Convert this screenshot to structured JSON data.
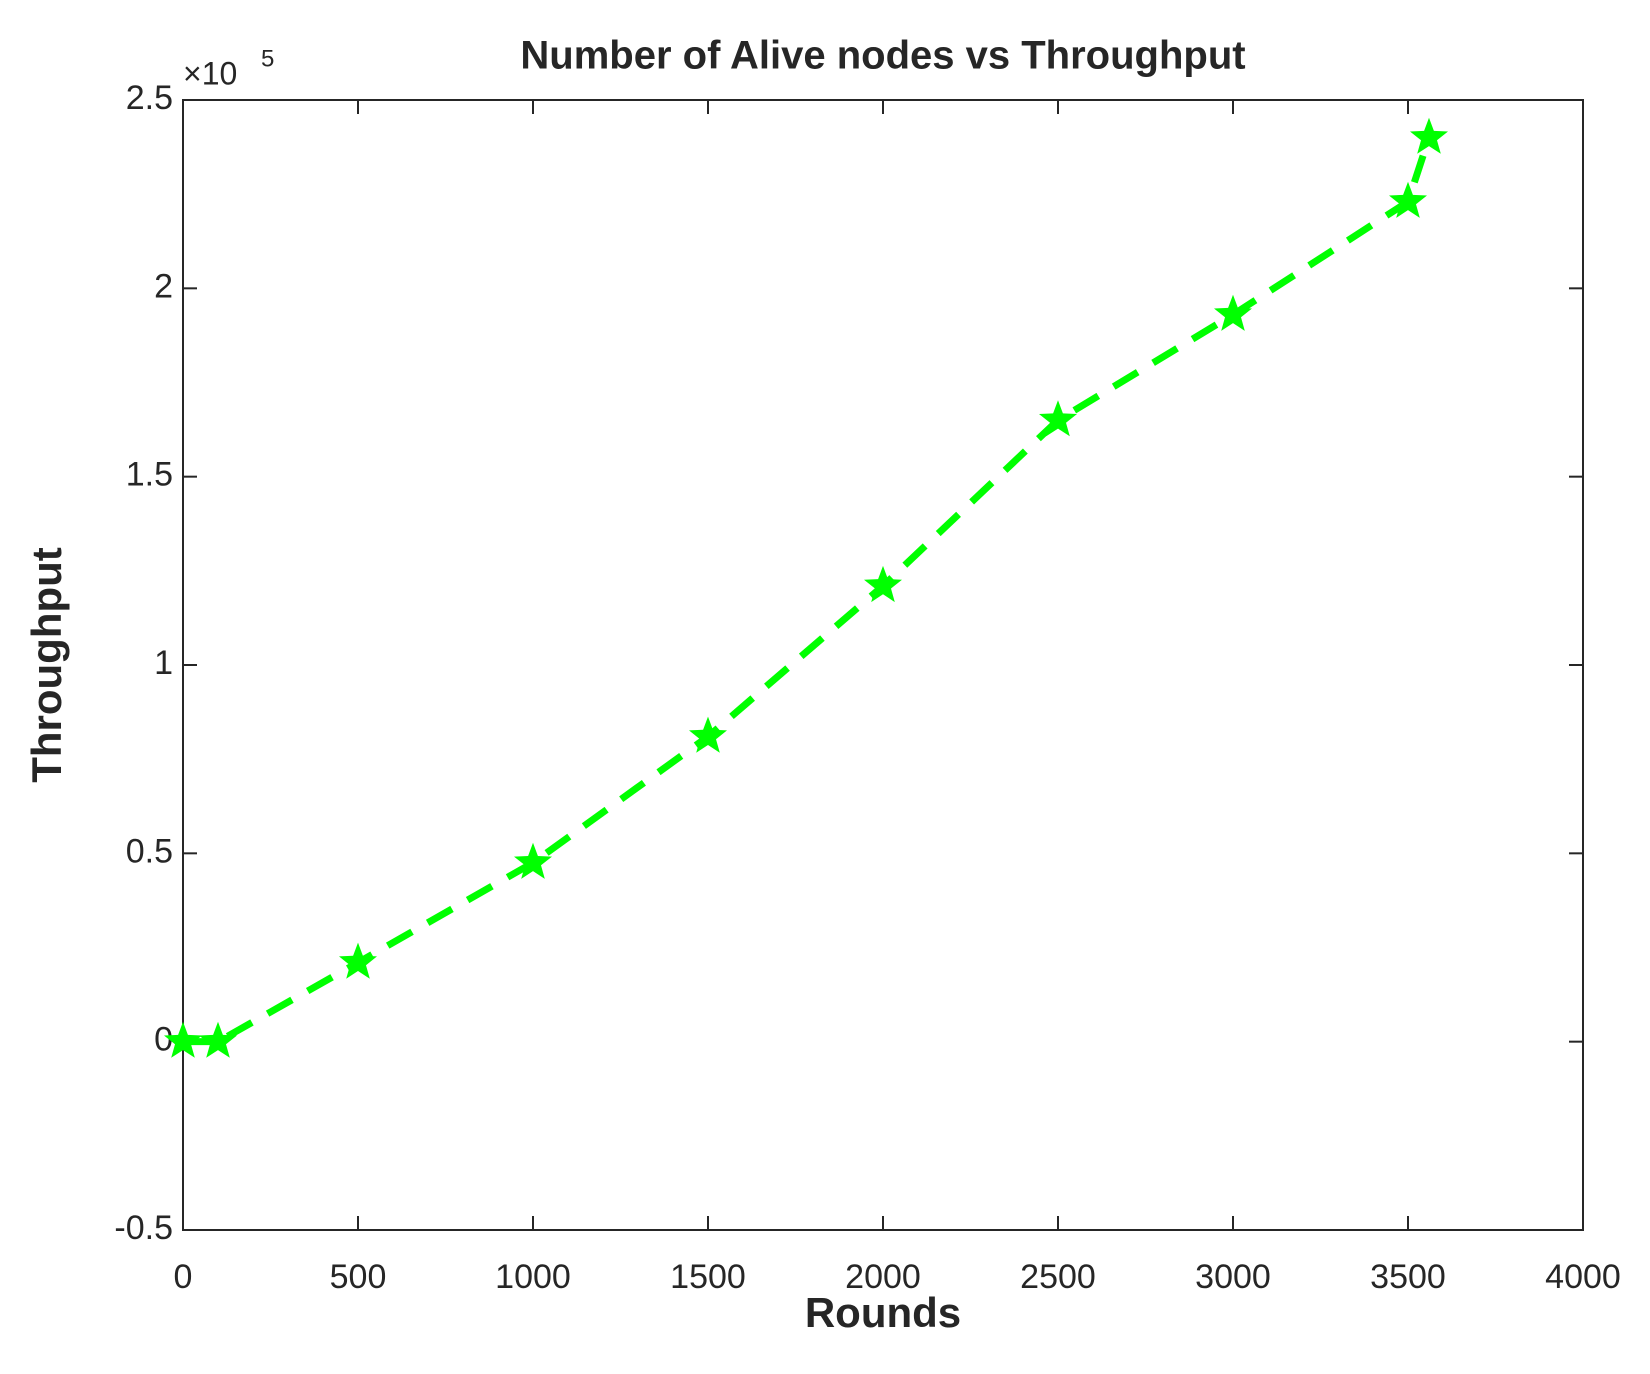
{
  "chart_data": {
    "type": "line",
    "title": "Number of Alive nodes vs Throughput",
    "x_label": "Rounds",
    "y_label": "Throughput",
    "y_multiplier": {
      "base": "×10",
      "exponent": "5"
    },
    "x": [
      0,
      100,
      500,
      1000,
      1500,
      2000,
      2500,
      3000,
      3500,
      3560
    ],
    "series": [
      {
        "color": "#00ff00",
        "line_style": "dashed",
        "marker": "star",
        "values": [
          0,
          0,
          0.21,
          0.475,
          0.81,
          1.21,
          1.65,
          1.93,
          2.23,
          2.4
        ]
      }
    ],
    "xlim": [
      0,
      4000
    ],
    "xticks": [
      0,
      500,
      1000,
      1500,
      2000,
      2500,
      3000,
      3500,
      4000
    ],
    "ylim": [
      -0.5,
      2.5
    ],
    "yticks": [
      -0.5,
      0,
      0.5,
      1,
      1.5,
      2,
      2.5
    ],
    "grid": false
  }
}
